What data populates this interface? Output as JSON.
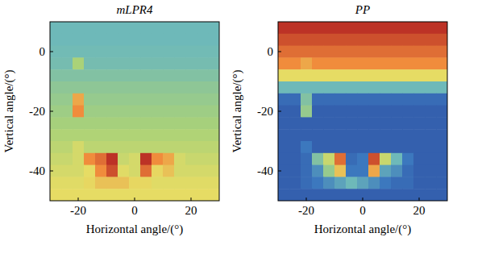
{
  "chart_data": [
    {
      "type": "heatmap",
      "title": "mLPR4",
      "xlabel": "Horizontal angle/(°)",
      "ylabel": "Vertical angle/(°)",
      "xlim": [
        -30,
        30
      ],
      "ylim": [
        -50,
        10
      ],
      "xticks": [
        -20,
        0,
        20
      ],
      "yticks": [
        -40,
        -20,
        0
      ],
      "clim": [
        0,
        1
      ],
      "cells": [
        [
          0.4,
          0.4,
          0.4,
          0.4,
          0.4,
          0.4,
          0.4,
          0.4,
          0.4,
          0.4,
          0.4,
          0.4,
          0.4,
          0.4,
          0.4
        ],
        [
          0.4,
          0.4,
          0.4,
          0.4,
          0.4,
          0.4,
          0.4,
          0.4,
          0.4,
          0.4,
          0.4,
          0.4,
          0.4,
          0.4,
          0.4
        ],
        [
          0.41,
          0.41,
          0.41,
          0.41,
          0.41,
          0.41,
          0.41,
          0.41,
          0.41,
          0.41,
          0.41,
          0.41,
          0.41,
          0.41,
          0.41
        ],
        [
          0.42,
          0.42,
          0.55,
          0.42,
          0.42,
          0.42,
          0.42,
          0.42,
          0.42,
          0.42,
          0.42,
          0.42,
          0.42,
          0.42,
          0.42
        ],
        [
          0.45,
          0.45,
          0.45,
          0.45,
          0.45,
          0.45,
          0.45,
          0.45,
          0.45,
          0.45,
          0.45,
          0.45,
          0.45,
          0.45,
          0.45
        ],
        [
          0.48,
          0.48,
          0.48,
          0.48,
          0.48,
          0.48,
          0.48,
          0.48,
          0.48,
          0.48,
          0.48,
          0.48,
          0.48,
          0.48,
          0.48
        ],
        [
          0.5,
          0.5,
          0.75,
          0.5,
          0.5,
          0.5,
          0.5,
          0.5,
          0.5,
          0.5,
          0.5,
          0.5,
          0.5,
          0.5,
          0.5
        ],
        [
          0.52,
          0.52,
          0.8,
          0.52,
          0.52,
          0.52,
          0.52,
          0.52,
          0.52,
          0.52,
          0.52,
          0.52,
          0.52,
          0.52,
          0.52
        ],
        [
          0.54,
          0.54,
          0.54,
          0.54,
          0.54,
          0.54,
          0.54,
          0.54,
          0.54,
          0.54,
          0.54,
          0.54,
          0.54,
          0.54,
          0.54
        ],
        [
          0.56,
          0.56,
          0.56,
          0.56,
          0.56,
          0.56,
          0.56,
          0.56,
          0.56,
          0.56,
          0.56,
          0.56,
          0.56,
          0.56,
          0.56
        ],
        [
          0.58,
          0.58,
          0.62,
          0.58,
          0.58,
          0.58,
          0.58,
          0.58,
          0.58,
          0.58,
          0.58,
          0.58,
          0.58,
          0.58,
          0.58
        ],
        [
          0.6,
          0.6,
          0.62,
          0.8,
          0.85,
          0.95,
          0.6,
          0.62,
          0.95,
          0.8,
          0.75,
          0.62,
          0.6,
          0.6,
          0.6
        ],
        [
          0.62,
          0.62,
          0.62,
          0.65,
          0.8,
          0.9,
          0.64,
          0.62,
          0.85,
          0.66,
          0.7,
          0.62,
          0.62,
          0.62,
          0.62
        ],
        [
          0.64,
          0.64,
          0.64,
          0.66,
          0.7,
          0.7,
          0.7,
          0.66,
          0.66,
          0.64,
          0.64,
          0.64,
          0.64,
          0.64,
          0.64
        ],
        [
          0.65,
          0.65,
          0.65,
          0.65,
          0.65,
          0.65,
          0.65,
          0.65,
          0.65,
          0.65,
          0.65,
          0.65,
          0.65,
          0.65,
          0.65
        ]
      ]
    },
    {
      "type": "heatmap",
      "title": "PP",
      "xlabel": "Horizontal angle/(°)",
      "ylabel": "Vertical angle/(°)",
      "xlim": [
        -30,
        30
      ],
      "ylim": [
        -50,
        10
      ],
      "xticks": [
        -20,
        0,
        20
      ],
      "yticks": [
        -40,
        -20,
        0
      ],
      "clim": [
        0,
        1
      ],
      "cells": [
        [
          0.95,
          0.95,
          0.95,
          0.95,
          0.95,
          0.95,
          0.95,
          0.95,
          0.95,
          0.95,
          0.95,
          0.95,
          0.95,
          0.95,
          0.95
        ],
        [
          0.9,
          0.9,
          0.9,
          0.9,
          0.9,
          0.9,
          0.9,
          0.9,
          0.9,
          0.9,
          0.9,
          0.9,
          0.9,
          0.9,
          0.9
        ],
        [
          0.85,
          0.85,
          0.85,
          0.85,
          0.85,
          0.85,
          0.85,
          0.85,
          0.85,
          0.85,
          0.85,
          0.85,
          0.85,
          0.85,
          0.85
        ],
        [
          0.8,
          0.8,
          0.75,
          0.8,
          0.8,
          0.8,
          0.8,
          0.8,
          0.8,
          0.8,
          0.8,
          0.8,
          0.8,
          0.8,
          0.8
        ],
        [
          0.65,
          0.65,
          0.65,
          0.65,
          0.65,
          0.65,
          0.65,
          0.65,
          0.65,
          0.65,
          0.65,
          0.65,
          0.65,
          0.65,
          0.65
        ],
        [
          0.4,
          0.4,
          0.4,
          0.4,
          0.4,
          0.4,
          0.4,
          0.4,
          0.4,
          0.4,
          0.4,
          0.4,
          0.4,
          0.4,
          0.4
        ],
        [
          0.2,
          0.2,
          0.45,
          0.2,
          0.2,
          0.2,
          0.2,
          0.2,
          0.2,
          0.2,
          0.2,
          0.2,
          0.2,
          0.2,
          0.2
        ],
        [
          0.15,
          0.15,
          0.5,
          0.15,
          0.15,
          0.15,
          0.15,
          0.15,
          0.15,
          0.15,
          0.15,
          0.15,
          0.15,
          0.15,
          0.15
        ],
        [
          0.15,
          0.15,
          0.15,
          0.15,
          0.15,
          0.15,
          0.15,
          0.15,
          0.15,
          0.15,
          0.15,
          0.15,
          0.15,
          0.15,
          0.15
        ],
        [
          0.15,
          0.15,
          0.15,
          0.15,
          0.15,
          0.15,
          0.15,
          0.15,
          0.15,
          0.15,
          0.15,
          0.15,
          0.15,
          0.15,
          0.15
        ],
        [
          0.15,
          0.15,
          0.25,
          0.15,
          0.15,
          0.15,
          0.15,
          0.15,
          0.15,
          0.15,
          0.15,
          0.15,
          0.15,
          0.15,
          0.15
        ],
        [
          0.15,
          0.15,
          0.2,
          0.45,
          0.6,
          0.85,
          0.2,
          0.25,
          0.9,
          0.6,
          0.4,
          0.25,
          0.15,
          0.15,
          0.15
        ],
        [
          0.15,
          0.15,
          0.2,
          0.3,
          0.5,
          0.7,
          0.25,
          0.25,
          0.75,
          0.35,
          0.3,
          0.2,
          0.15,
          0.15,
          0.15
        ],
        [
          0.15,
          0.15,
          0.2,
          0.25,
          0.3,
          0.35,
          0.4,
          0.35,
          0.3,
          0.25,
          0.2,
          0.2,
          0.15,
          0.15,
          0.15
        ],
        [
          0.15,
          0.15,
          0.15,
          0.15,
          0.15,
          0.15,
          0.15,
          0.15,
          0.15,
          0.15,
          0.15,
          0.15,
          0.15,
          0.15,
          0.15
        ]
      ]
    }
  ]
}
